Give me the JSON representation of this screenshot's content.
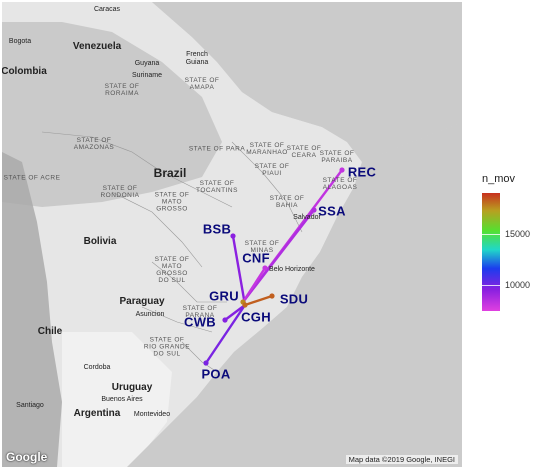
{
  "map": {
    "place_labels": [
      {
        "text": "Caracas",
        "kind": "city"
      },
      {
        "text": "Venezuela",
        "kind": "country"
      },
      {
        "text": "Bogota",
        "kind": "city"
      },
      {
        "text": "Colombia",
        "kind": "country"
      },
      {
        "text": "Guyana",
        "kind": "city"
      },
      {
        "text": "Suriname",
        "kind": "city"
      },
      {
        "text": "French\nGuiana",
        "kind": "city"
      },
      {
        "text": "STATE OF\nRORAIMA",
        "kind": "state"
      },
      {
        "text": "STATE OF\nAMAPA",
        "kind": "state"
      },
      {
        "text": "STATE OF\nAMAZONAS",
        "kind": "state"
      },
      {
        "text": "STATE OF PARA",
        "kind": "state"
      },
      {
        "text": "STATE OF\nMARANHAO",
        "kind": "state"
      },
      {
        "text": "STATE OF\nCEARA",
        "kind": "state"
      },
      {
        "text": "STATE OF\nPIAUI",
        "kind": "state"
      },
      {
        "text": "STATE OF\nPARAIBA",
        "kind": "state"
      },
      {
        "text": "STATE OF\nALAGOAS",
        "kind": "state"
      },
      {
        "text": "STATE OF ACRE",
        "kind": "state"
      },
      {
        "text": "Brazil",
        "kind": "country-big"
      },
      {
        "text": "STATE OF\nRONDONIA",
        "kind": "state"
      },
      {
        "text": "STATE OF\nTOCANTINS",
        "kind": "state"
      },
      {
        "text": "STATE OF\nMATO\nGROSSO",
        "kind": "state"
      },
      {
        "text": "STATE OF\nBAHIA",
        "kind": "state"
      },
      {
        "text": "Salvador",
        "kind": "city"
      },
      {
        "text": "Bolivia",
        "kind": "country"
      },
      {
        "text": "STATE OF\nMINAS",
        "kind": "state"
      },
      {
        "text": "STATE OF\nMATO\nGROSSO\nDO SUL",
        "kind": "state"
      },
      {
        "text": "Belo Horizonte",
        "kind": "city"
      },
      {
        "text": "Paraguay",
        "kind": "country"
      },
      {
        "text": "Asuncion",
        "kind": "city"
      },
      {
        "text": "STATE OF\nPARANA",
        "kind": "state"
      },
      {
        "text": "Chile",
        "kind": "country"
      },
      {
        "text": "Cordoba",
        "kind": "city"
      },
      {
        "text": "STATE OF\nRIO GRANDE\nDO SUL",
        "kind": "state"
      },
      {
        "text": "Uruguay",
        "kind": "country"
      },
      {
        "text": "Santiago",
        "kind": "city"
      },
      {
        "text": "Buenos Aires",
        "kind": "city"
      },
      {
        "text": "Montevideo",
        "kind": "city"
      },
      {
        "text": "Argentina",
        "kind": "country"
      }
    ],
    "airports": [
      {
        "code": "REC",
        "n_mov": 8200
      },
      {
        "code": "SSA",
        "n_mov": 8600
      },
      {
        "code": "BSB",
        "n_mov": 9400
      },
      {
        "code": "CNF",
        "n_mov": 8100
      },
      {
        "code": "GRU",
        "n_mov": 17500
      },
      {
        "code": "SDU",
        "n_mov": 18200
      },
      {
        "code": "CGH",
        "n_mov": 18000
      },
      {
        "code": "CWB",
        "n_mov": 9500
      },
      {
        "code": "POA",
        "n_mov": 9700
      }
    ],
    "routes": [
      {
        "from": "GRU",
        "to": "REC",
        "n_mov": 8200
      },
      {
        "from": "GRU",
        "to": "SSA",
        "n_mov": 8600
      },
      {
        "from": "CGH",
        "to": "BSB",
        "n_mov": 9400
      },
      {
        "from": "GRU",
        "to": "CNF",
        "n_mov": 8100
      },
      {
        "from": "CGH",
        "to": "SDU",
        "n_mov": 18200
      },
      {
        "from": "CGH",
        "to": "CWB",
        "n_mov": 9500
      },
      {
        "from": "CGH",
        "to": "POA",
        "n_mov": 9700
      }
    ],
    "google_logo": "Google",
    "credit": "Map data ©2019 Google, INEGI"
  },
  "legend": {
    "title": "n_mov",
    "ticks": [
      15000,
      10000
    ],
    "range": [
      7500,
      19000
    ],
    "colors": [
      "#e040e0",
      "#8a20e0",
      "#1c3cee",
      "#20d8c8",
      "#55e030",
      "#b8a020",
      "#c8301e"
    ]
  }
}
